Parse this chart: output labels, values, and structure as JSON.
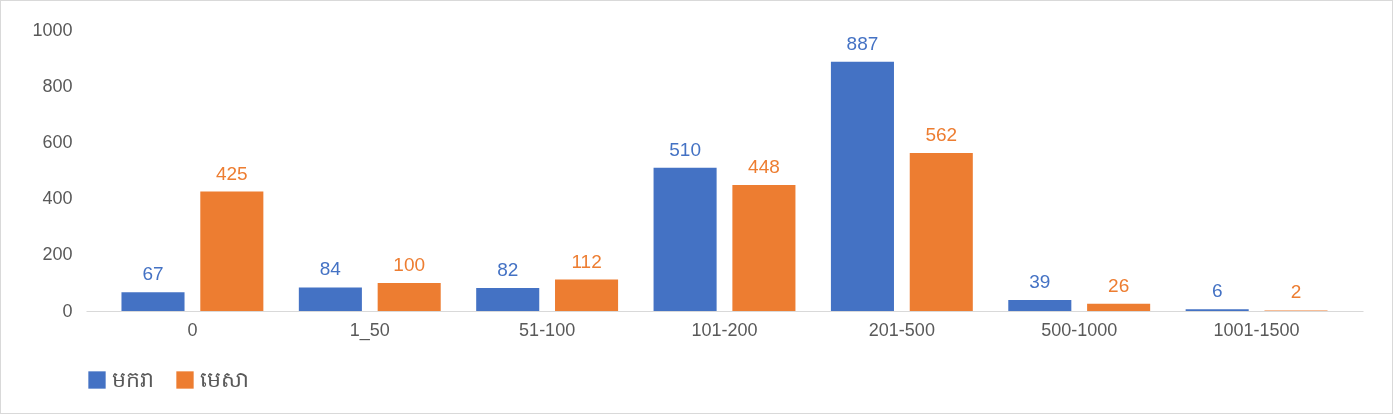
{
  "chart_data": {
    "type": "bar",
    "categories": [
      "0",
      "1_50",
      "51-100",
      "101-200",
      "201-500",
      "500-1000",
      "1001-1500"
    ],
    "series": [
      {
        "name": "មករា",
        "color": "#4472c4",
        "values": [
          67,
          84,
          82,
          510,
          887,
          39,
          6
        ]
      },
      {
        "name": "មេសា",
        "color": "#ed7d31",
        "values": [
          425,
          100,
          112,
          448,
          562,
          26,
          2
        ]
      }
    ],
    "ylim": [
      0,
      1000
    ],
    "yticks": [
      0,
      200,
      400,
      600,
      800,
      1000
    ],
    "grid": false,
    "legend": "bottom",
    "data_labels": true
  }
}
